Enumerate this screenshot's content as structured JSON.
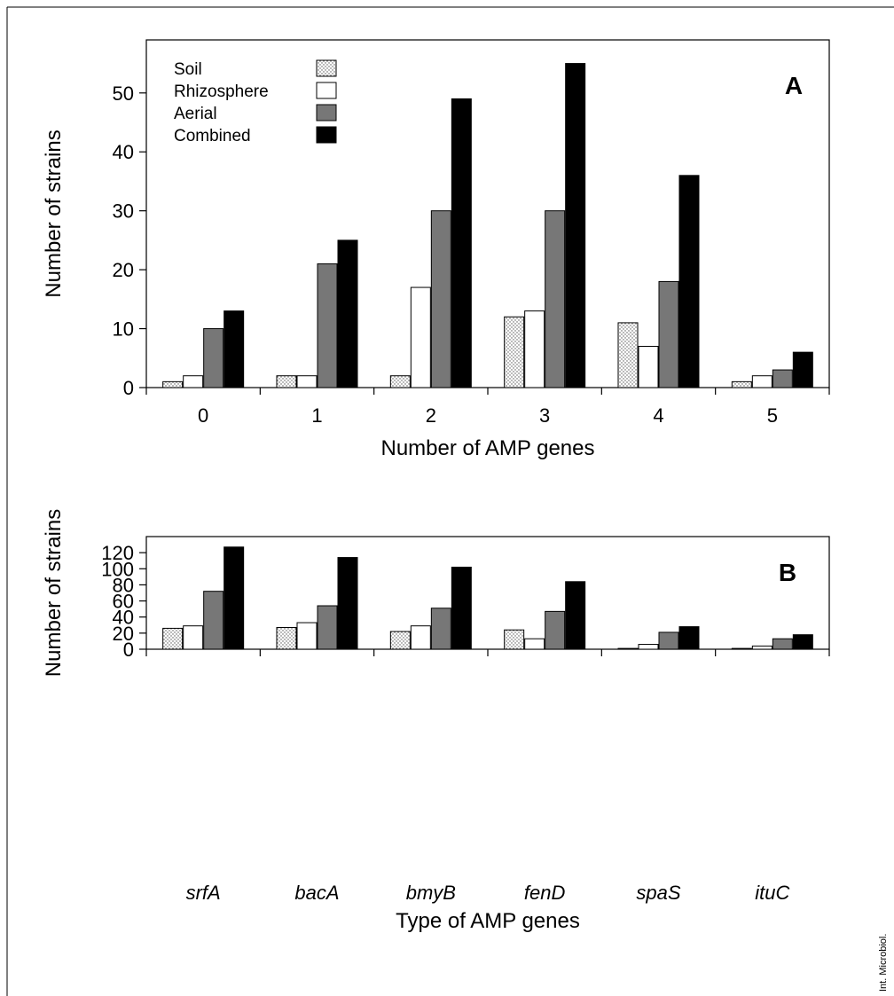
{
  "credit": "Int. Microbiol.",
  "legend": {
    "items": [
      {
        "name": "Soil",
        "pattern": "dots"
      },
      {
        "name": "Rhizosphere",
        "color": "#ffffff"
      },
      {
        "name": "Aerial",
        "color": "#777777"
      },
      {
        "name": "Combined",
        "color": "#000000"
      }
    ]
  },
  "chart_data": [
    {
      "type": "bar",
      "panel_label": "A",
      "xlabel": "Number of AMP genes",
      "ylabel": "Number of strains",
      "categories": [
        "0",
        "1",
        "2",
        "3",
        "4",
        "5"
      ],
      "ylim": [
        0,
        59
      ],
      "yticks": [
        0,
        10,
        20,
        30,
        40,
        50
      ],
      "series": [
        {
          "name": "Soil",
          "values": [
            1,
            2,
            2,
            12,
            11,
            1
          ]
        },
        {
          "name": "Rhizosphere",
          "values": [
            2,
            2,
            17,
            13,
            7,
            2
          ]
        },
        {
          "name": "Aerial",
          "values": [
            10,
            21,
            30,
            30,
            18,
            3
          ]
        },
        {
          "name": "Combined",
          "values": [
            13,
            25,
            49,
            55,
            36,
            6
          ]
        }
      ],
      "legend_position": "top-left"
    },
    {
      "type": "bar",
      "panel_label": "B",
      "xlabel": "Type of AMP genes",
      "ylabel": "Number of strains",
      "categories": [
        "srfA",
        "bacA",
        "bmyB",
        "fenD",
        "spaS",
        "ituC"
      ],
      "ylim": [
        0,
        140
      ],
      "yticks": [
        0,
        20,
        40,
        60,
        80,
        100,
        120
      ],
      "series": [
        {
          "name": "Soil",
          "values": [
            26,
            27,
            22,
            24,
            1,
            1
          ]
        },
        {
          "name": "Rhizosphere",
          "values": [
            29,
            33,
            29,
            13,
            6,
            4
          ]
        },
        {
          "name": "Aerial",
          "values": [
            72,
            54,
            51,
            47,
            21,
            13
          ]
        },
        {
          "name": "Combined",
          "values": [
            127,
            114,
            102,
            84,
            28,
            18
          ]
        }
      ]
    }
  ]
}
